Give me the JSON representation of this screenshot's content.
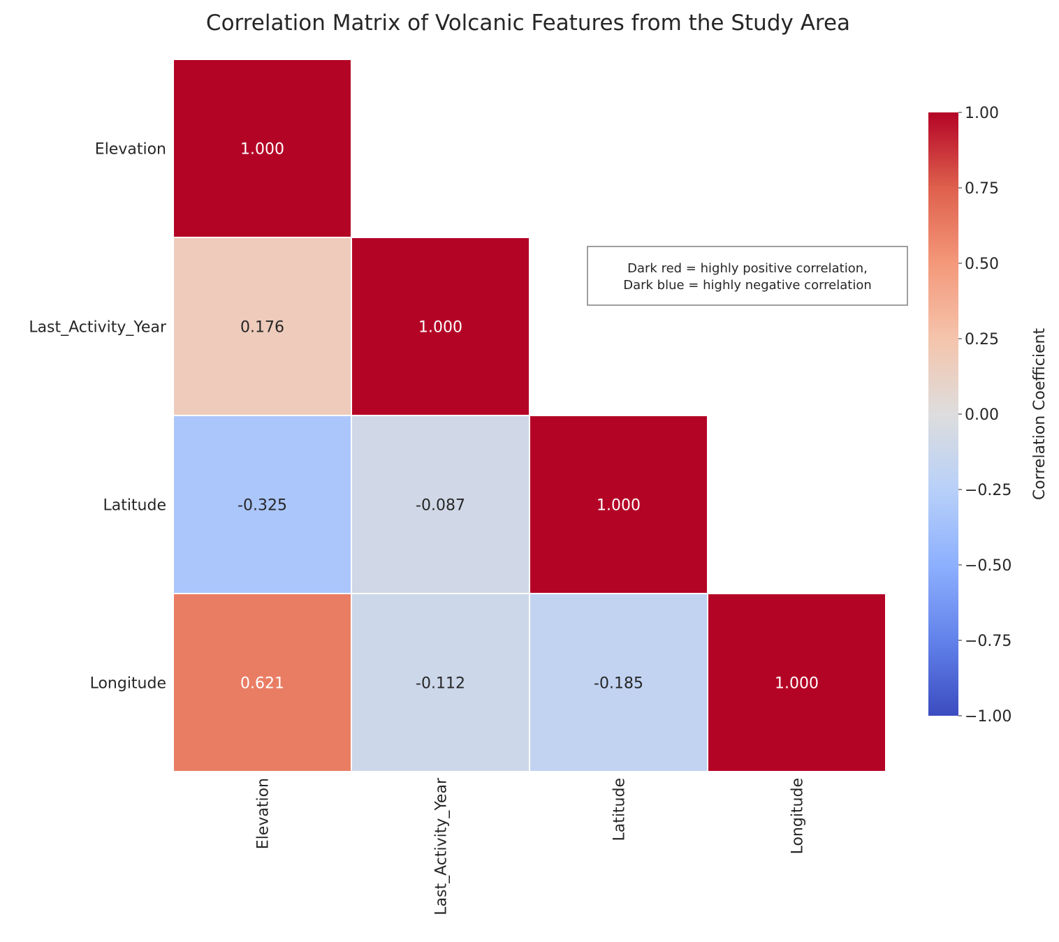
{
  "chart_data": {
    "type": "heatmap",
    "title": "Correlation Matrix of Volcanic Features from the Study Area",
    "variables": [
      "Elevation",
      "Last_Activity_Year",
      "Latitude",
      "Longitude"
    ],
    "mask": "upper-triangle",
    "values": [
      [
        1.0,
        null,
        null,
        null
      ],
      [
        0.176,
        1.0,
        null,
        null
      ],
      [
        -0.325,
        -0.087,
        1.0,
        null
      ],
      [
        0.621,
        -0.112,
        -0.185,
        1.0
      ]
    ],
    "value_labels": [
      [
        "1.000",
        "",
        "",
        ""
      ],
      [
        "0.176",
        "1.000",
        "",
        ""
      ],
      [
        "-0.325",
        "-0.087",
        "1.000",
        ""
      ],
      [
        "0.621",
        "-0.112",
        "-0.185",
        "1.000"
      ]
    ],
    "colormap": "coolwarm",
    "colorbar": {
      "label": "Correlation Coefficient",
      "range": [
        -1.0,
        1.0
      ],
      "ticks": [
        1.0,
        0.75,
        0.5,
        0.25,
        0.0,
        -0.25,
        -0.5,
        -0.75,
        -1.0
      ],
      "tick_labels": [
        "1.00",
        "0.75",
        "0.50",
        "0.25",
        "0.00",
        "−0.25",
        "−0.50",
        "−0.75",
        "−1.00"
      ],
      "colors": {
        "-1.0": "#3b4cc0",
        "-0.75": "#6282ea",
        "-0.5": "#8db0fe",
        "-0.25": "#b8d0f9",
        "0.0": "#dddddd",
        "0.25": "#f5c4ac",
        "0.5": "#f4987a",
        "0.75": "#de604d",
        "1.0": "#b40426"
      }
    },
    "annotation": {
      "line1": "Dark red = highly positive correlation,",
      "line2": "Dark blue = highly negative correlation"
    },
    "cell_border_color": "#ffffff",
    "annotation_text_colors": {
      "dark": "#262626",
      "light": "#ffffff"
    }
  }
}
